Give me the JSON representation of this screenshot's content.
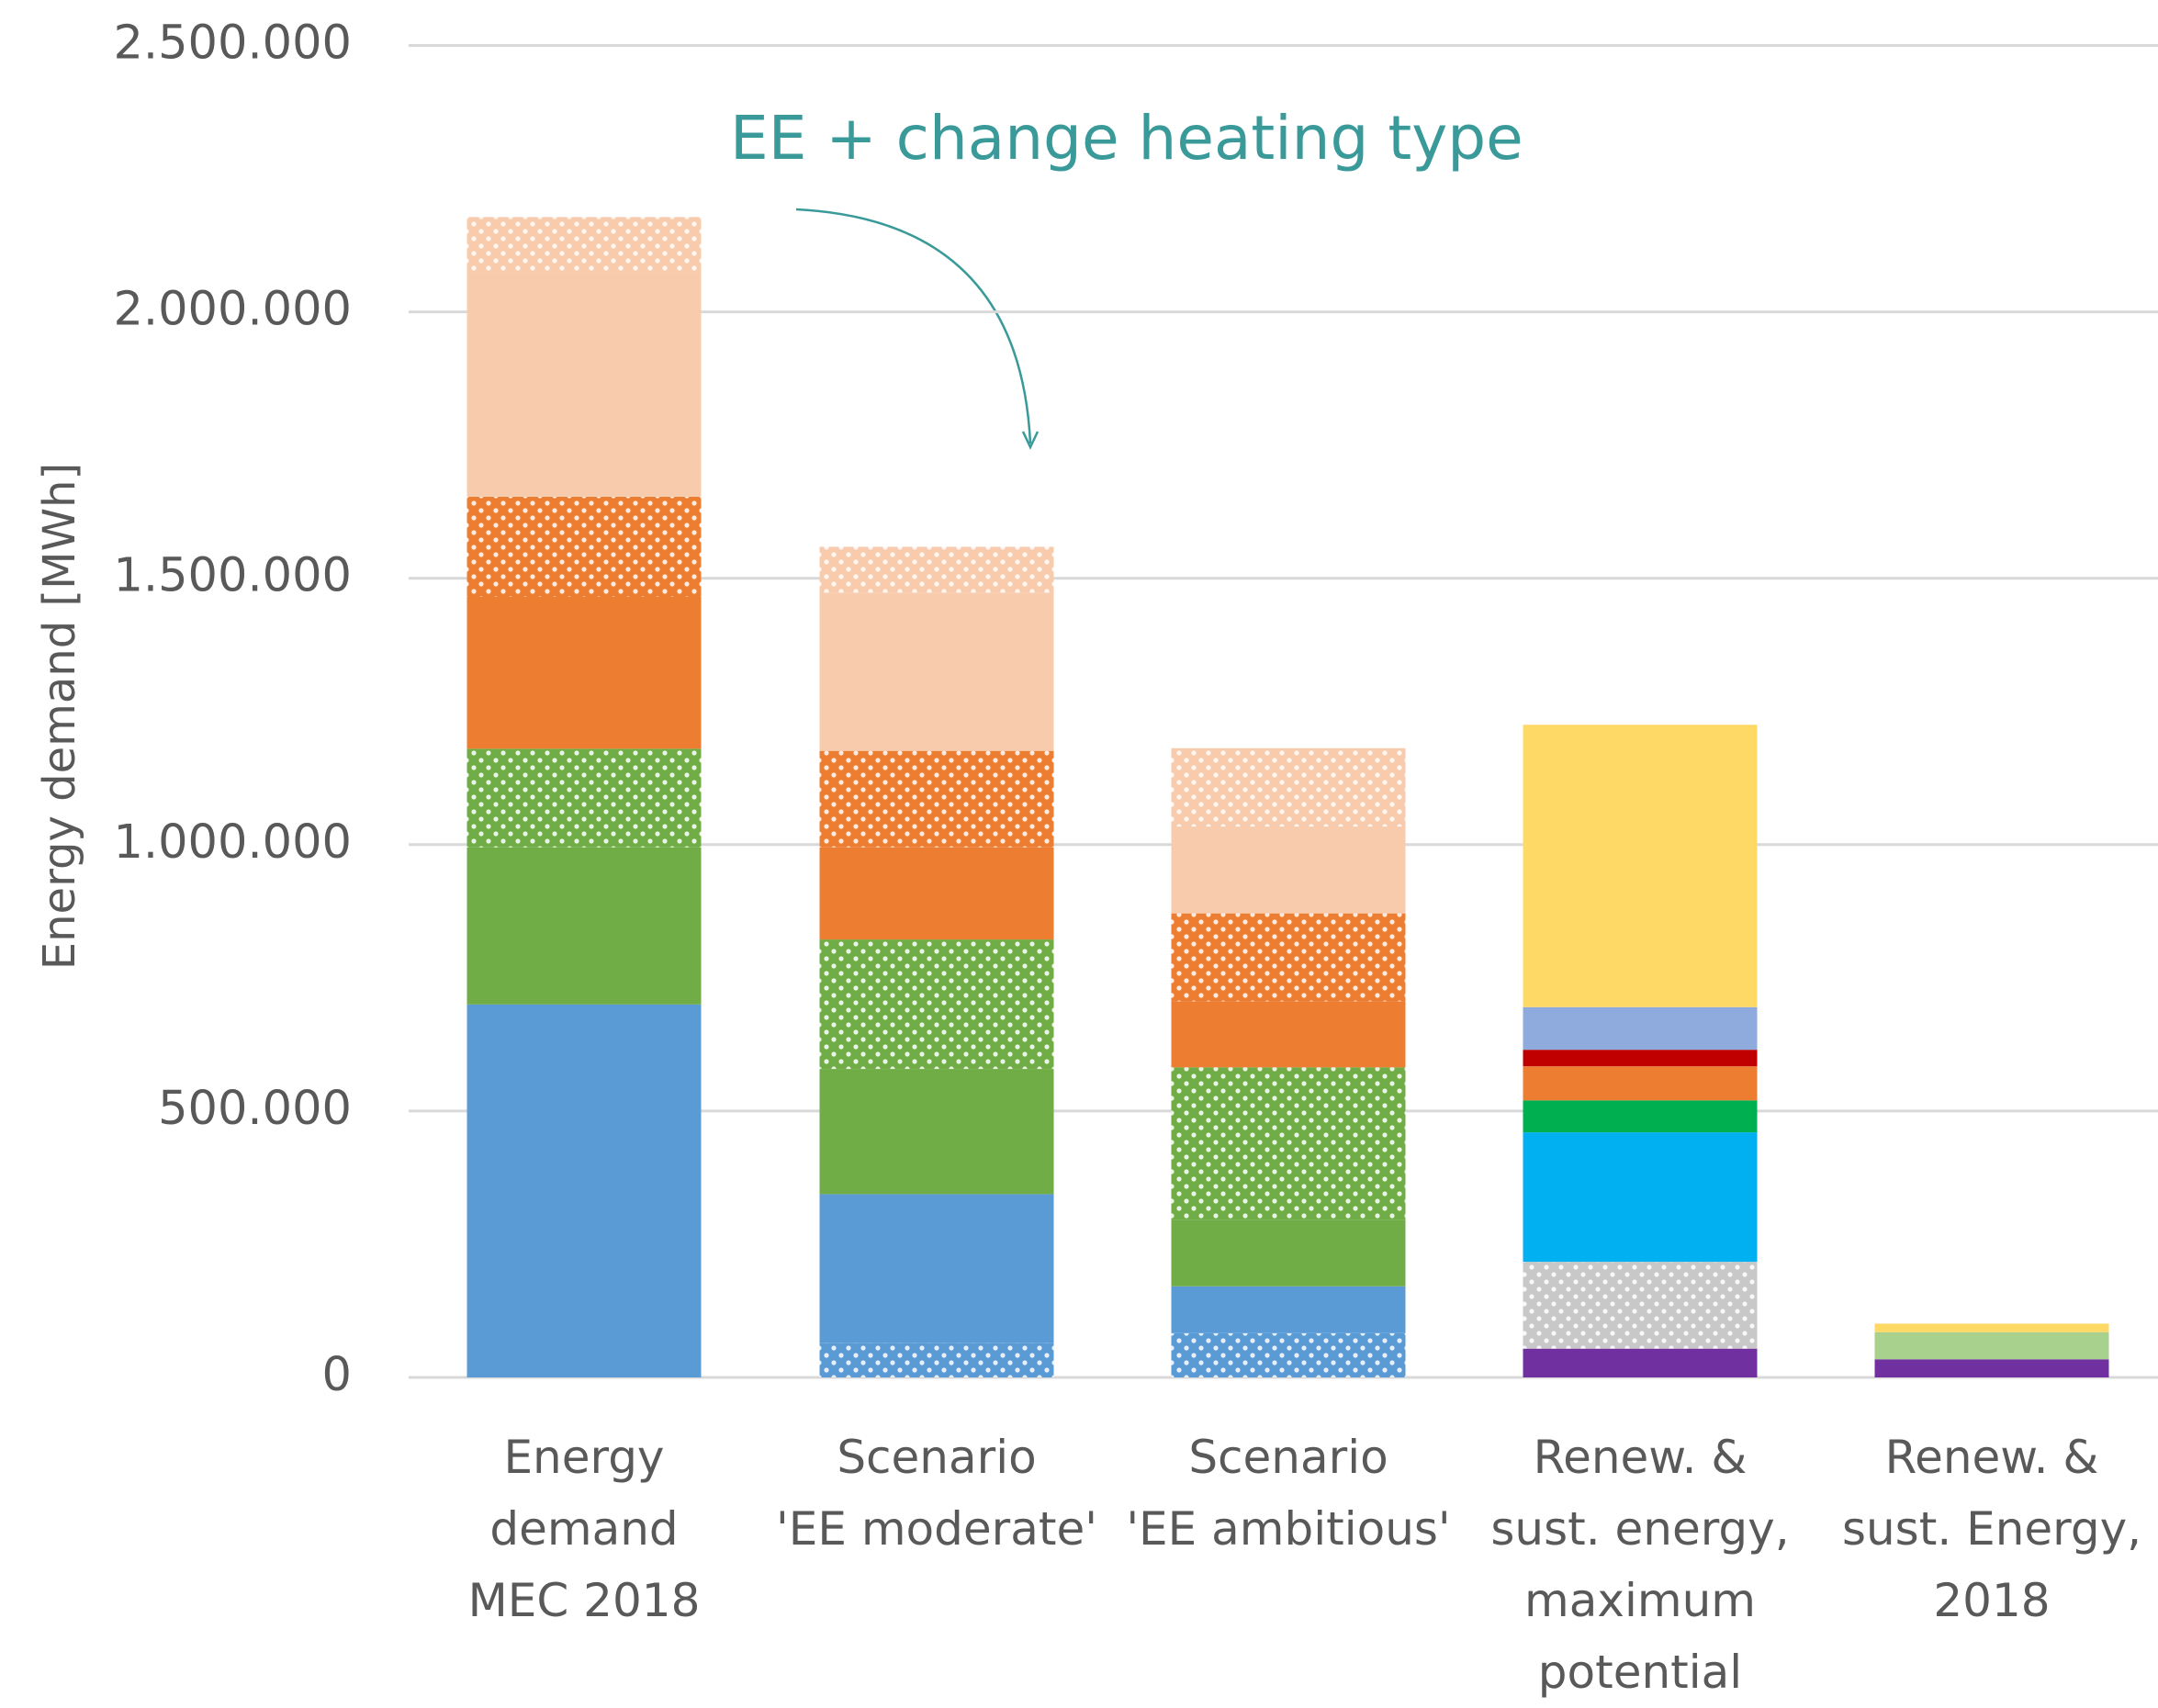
{
  "chart_data": {
    "type": "stacked_bar",
    "y_label": "Energy demand [MWh]",
    "annotation": "EE + change heating type",
    "annotation_color": "#3a9a9a",
    "categories": [
      "Energy\ndemand\nMEC 2018",
      "Scenario\n'EE moderate'",
      "Scenario\n'EE ambitious'",
      "Renew. &\nsust. energy,\nmaximum\npotential",
      "Renew. &\nsust. Energy,\n2018"
    ],
    "ylim": [
      0,
      2500000
    ],
    "yticks": [
      0,
      {
        "value": 500000,
        "label": "500.000"
      },
      {
        "value": 1000000,
        "label": "1.000.000"
      },
      {
        "value": 1500000,
        "label": "1.500.000"
      },
      {
        "value": 2000000,
        "label": "2.000.000"
      },
      {
        "value": 2500000,
        "label": "2.500.000"
      }
    ],
    "grid": true,
    "series": [
      {
        "color": "#5b9bd5",
        "pattern": "dots",
        "values": [
          null,
          65000,
          83000,
          null,
          null
        ]
      },
      {
        "color": "#5b9bd5",
        "values": [
          700000,
          279000,
          88000,
          null,
          null
        ]
      },
      {
        "color": "#70ad47",
        "values": [
          295000,
          235000,
          124000,
          null,
          null
        ]
      },
      {
        "color": "#70ad47",
        "pattern": "dots",
        "values": [
          185000,
          243000,
          287000,
          null,
          null
        ]
      },
      {
        "color": "#ed7d31",
        "values": [
          285000,
          173000,
          124000,
          null,
          null
        ]
      },
      {
        "color": "#ed7d31",
        "pattern": "dots",
        "values": [
          188000,
          181000,
          165000,
          null,
          null
        ]
      },
      {
        "color": "#f8cbad",
        "values": [
          422000,
          297000,
          163000,
          null,
          null
        ]
      },
      {
        "color": "#f8cbad",
        "pattern": "dots",
        "values": [
          103000,
          86000,
          147000,
          null,
          null
        ]
      },
      {
        "color": "#7030a0",
        "values": [
          null,
          null,
          null,
          54000,
          34000
        ]
      },
      {
        "color": "#c8c8c8",
        "pattern": "dots",
        "values": [
          null,
          null,
          null,
          163000,
          null
        ]
      },
      {
        "color": "#00b0f0",
        "values": [
          null,
          null,
          null,
          243000,
          null
        ]
      },
      {
        "color": "#00b050",
        "values": [
          null,
          null,
          null,
          60000,
          null
        ]
      },
      {
        "color": "#ed7d31",
        "values": [
          null,
          null,
          null,
          64000,
          null
        ]
      },
      {
        "color": "#c00000",
        "values": [
          null,
          null,
          null,
          31000,
          null
        ]
      },
      {
        "color": "#8faadc",
        "values": [
          null,
          null,
          null,
          80000,
          null
        ]
      },
      {
        "color": "#a9d18e",
        "values": [
          null,
          null,
          null,
          null,
          51000
        ]
      },
      {
        "color": "#ffd966",
        "values": [
          null,
          null,
          null,
          530000,
          16000
        ]
      }
    ]
  }
}
